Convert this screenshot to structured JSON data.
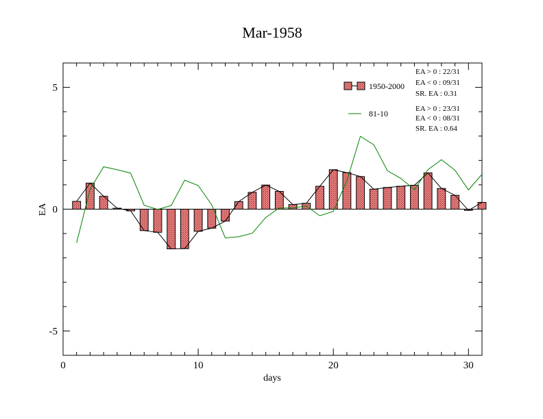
{
  "chart_data": {
    "type": "bar",
    "title": "Mar-1958",
    "xlabel": "days",
    "ylabel": "EA",
    "xlim": [
      0,
      31
    ],
    "ylim": [
      -6,
      6
    ],
    "x_ticks": [
      0,
      10,
      20,
      30
    ],
    "y_ticks": [
      -5,
      0,
      5
    ],
    "grid": false,
    "legend_position": "top-right",
    "days": [
      1,
      2,
      3,
      4,
      5,
      6,
      7,
      8,
      9,
      10,
      11,
      12,
      13,
      14,
      15,
      16,
      17,
      18,
      19,
      20,
      21,
      22,
      23,
      24,
      25,
      26,
      27,
      28,
      29,
      30,
      31
    ],
    "series": [
      {
        "name": "1950-2000",
        "kind": "bar",
        "color": "#f08080",
        "values": [
          0.32,
          1.07,
          0.53,
          0.04,
          -0.07,
          -0.88,
          -0.95,
          -1.63,
          -1.62,
          -0.91,
          -0.78,
          -0.49,
          0.31,
          0.69,
          0.99,
          0.73,
          0.19,
          0.24,
          0.94,
          1.62,
          1.5,
          1.34,
          0.82,
          0.89,
          0.94,
          0.98,
          1.49,
          0.85,
          0.57,
          -0.05,
          0.28
        ]
      },
      {
        "name": "81-10",
        "kind": "line",
        "color": "#008000",
        "values": [
          -1.38,
          0.82,
          1.74,
          1.62,
          1.48,
          0.16,
          -0.01,
          0.15,
          1.19,
          0.97,
          0.18,
          -1.18,
          -1.13,
          -0.99,
          -0.34,
          0.05,
          0.05,
          0.13,
          -0.27,
          -0.09,
          1.16,
          2.99,
          2.64,
          1.58,
          1.26,
          0.8,
          1.62,
          2.03,
          1.6,
          0.79,
          1.43
        ]
      }
    ],
    "stats": [
      {
        "pos": "EA > 0 : 22/31",
        "neg": "EA < 0 : 09/31",
        "sr": "SR. EA :  0.31"
      },
      {
        "pos": "EA > 0 : 23/31",
        "neg": "EA < 0 : 08/31",
        "sr": "SR. EA :  0.64"
      }
    ]
  }
}
